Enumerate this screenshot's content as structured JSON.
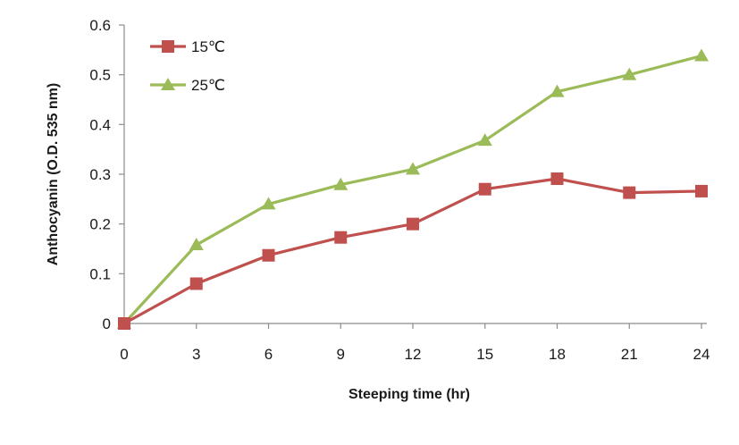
{
  "chart_data": {
    "type": "line",
    "xlabel": "Steeping time (hr)",
    "ylabel": "Anthocyanin (O.D. 535 nm)",
    "x": [
      0,
      3,
      6,
      9,
      12,
      15,
      18,
      21,
      24
    ],
    "xticks": [
      "0",
      "3",
      "6",
      "9",
      "12",
      "15",
      "18",
      "21",
      "24"
    ],
    "yticks": [
      "0",
      "0.1",
      "0.2",
      "0.3",
      "0.4",
      "0.5",
      "0.6"
    ],
    "xlim": [
      0,
      24
    ],
    "ylim": [
      0,
      0.6
    ],
    "grid": false,
    "legend_position": "top-left",
    "series": [
      {
        "name": "15℃",
        "marker": "square",
        "color": "#c0504d",
        "values": [
          0,
          0.08,
          0.137,
          0.173,
          0.2,
          0.27,
          0.291,
          0.263,
          0.266
        ]
      },
      {
        "name": "25℃",
        "marker": "triangle",
        "color": "#9bbb59",
        "values": [
          0,
          0.158,
          0.24,
          0.279,
          0.31,
          0.368,
          0.466,
          0.5,
          0.538
        ]
      }
    ]
  }
}
